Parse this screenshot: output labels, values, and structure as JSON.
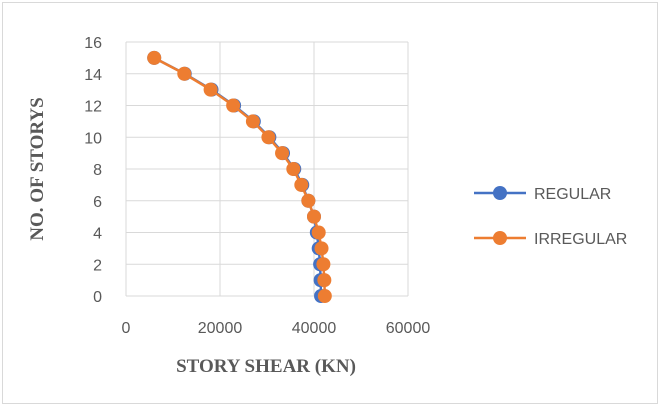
{
  "chart_data": {
    "type": "scatter",
    "title": "",
    "xlabel": "STORY SHEAR (KN)",
    "ylabel": "NO. OF STORYS",
    "xlim": [
      0,
      60000
    ],
    "ylim": [
      0,
      16
    ],
    "x_ticks": [
      "0",
      "20000",
      "40000",
      "60000"
    ],
    "y_ticks": [
      "0",
      "2",
      "4",
      "6",
      "8",
      "10",
      "12",
      "14",
      "16"
    ],
    "grid": "vertical and horizontal",
    "legend_position": "right",
    "series": [
      {
        "name": "REGULAR",
        "color": "#4472c4",
        "points": [
          {
            "x": 41500,
            "y": 0
          },
          {
            "x": 41400,
            "y": 1
          },
          {
            "x": 41300,
            "y": 2
          },
          {
            "x": 41000,
            "y": 3
          },
          {
            "x": 40600,
            "y": 4
          },
          {
            "x": 40000,
            "y": 5
          },
          {
            "x": 38800,
            "y": 6
          },
          {
            "x": 37500,
            "y": 7
          },
          {
            "x": 35800,
            "y": 8
          },
          {
            "x": 33400,
            "y": 9
          },
          {
            "x": 30500,
            "y": 10
          },
          {
            "x": 27200,
            "y": 11
          },
          {
            "x": 23000,
            "y": 12
          },
          {
            "x": 18200,
            "y": 13
          },
          {
            "x": 12500,
            "y": 14
          },
          {
            "x": 6000,
            "y": 15
          }
        ]
      },
      {
        "name": "IRREGULAR",
        "color": "#ed7d31",
        "points": [
          {
            "x": 42300,
            "y": 0
          },
          {
            "x": 42200,
            "y": 1
          },
          {
            "x": 42000,
            "y": 2
          },
          {
            "x": 41600,
            "y": 3
          },
          {
            "x": 41000,
            "y": 4
          },
          {
            "x": 40000,
            "y": 5
          },
          {
            "x": 38800,
            "y": 6
          },
          {
            "x": 37300,
            "y": 7
          },
          {
            "x": 35600,
            "y": 8
          },
          {
            "x": 33200,
            "y": 9
          },
          {
            "x": 30300,
            "y": 10
          },
          {
            "x": 27000,
            "y": 11
          },
          {
            "x": 22800,
            "y": 12
          },
          {
            "x": 18000,
            "y": 13
          },
          {
            "x": 12400,
            "y": 14
          },
          {
            "x": 6000,
            "y": 15
          }
        ]
      }
    ]
  }
}
